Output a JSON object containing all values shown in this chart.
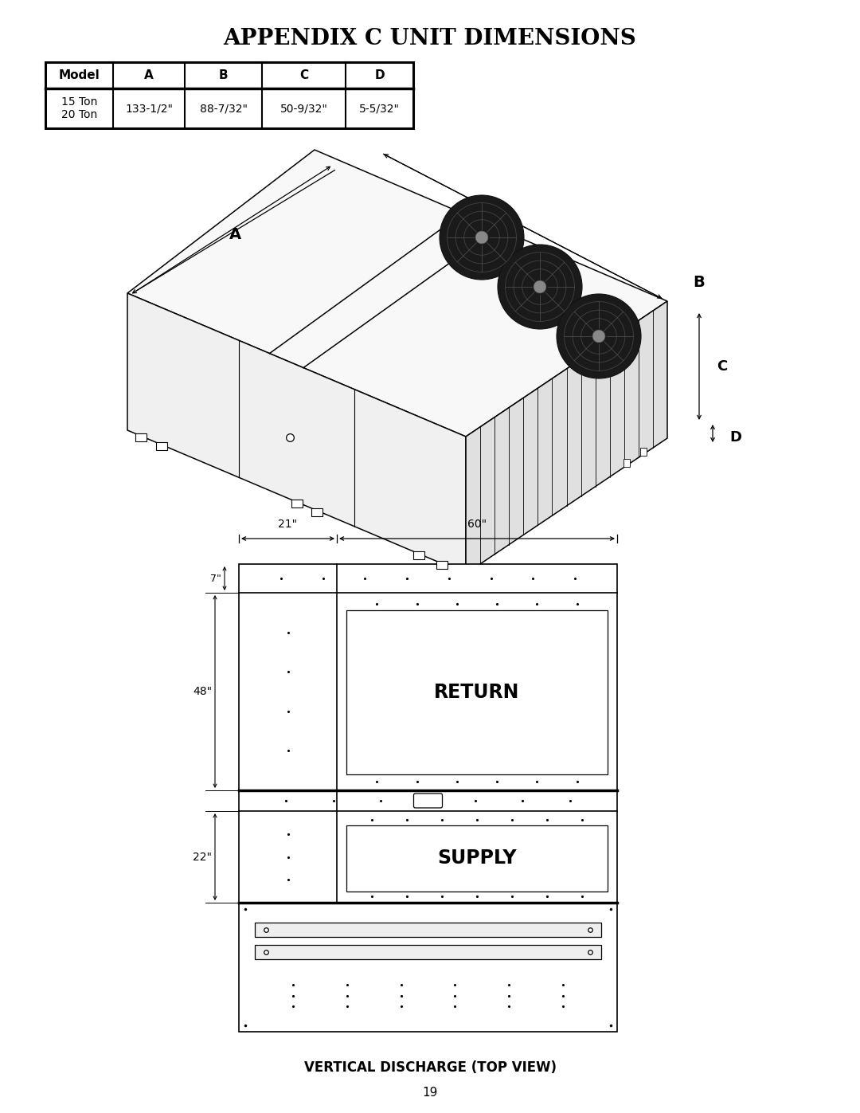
{
  "title": "APPENDIX C UNIT DIMENSIONS",
  "page_number": "19",
  "caption": "VERTICAL DISCHARGE (TOP VIEW)",
  "table": {
    "headers": [
      "Model",
      "A",
      "B",
      "C",
      "D"
    ],
    "rows": [
      [
        "15 Ton\n20 Ton",
        "133-1/2\"",
        "88-7/32\"",
        "50-9/32\"",
        "5-5/32\""
      ]
    ]
  },
  "bg_color": "#ffffff",
  "line_color": "#000000",
  "text_color": "#000000"
}
